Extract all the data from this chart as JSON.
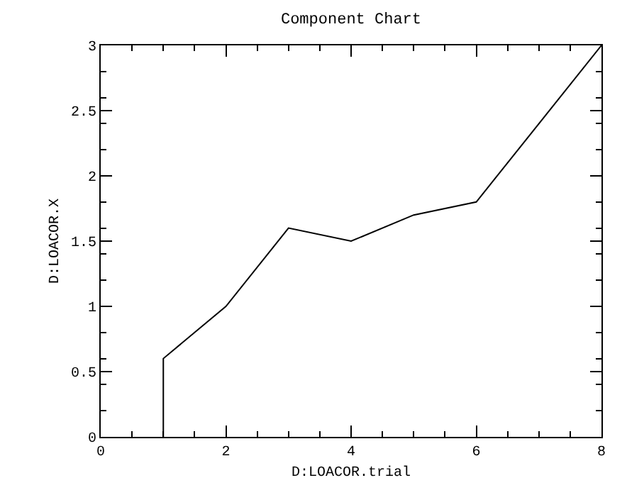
{
  "chart_data": {
    "type": "line",
    "title": "Component Chart",
    "xlabel": "D:LOACOR.trial",
    "ylabel": "D:LOACOR.X",
    "x": [
      1,
      1,
      2,
      3,
      4,
      5,
      6,
      8
    ],
    "series": [
      {
        "color": "#000000",
        "values": [
          0,
          0.6,
          1.0,
          1.6,
          1.5,
          1.7,
          1.8,
          3.0
        ]
      }
    ],
    "xlim": [
      0,
      8
    ],
    "xticks": [
      0,
      2,
      4,
      6,
      8
    ],
    "ylim": [
      0,
      3
    ],
    "yticks": [
      0,
      0.5,
      1,
      1.5,
      2,
      2.5,
      3
    ],
    "legend": false,
    "marker": "none",
    "line_style": "solid"
  }
}
